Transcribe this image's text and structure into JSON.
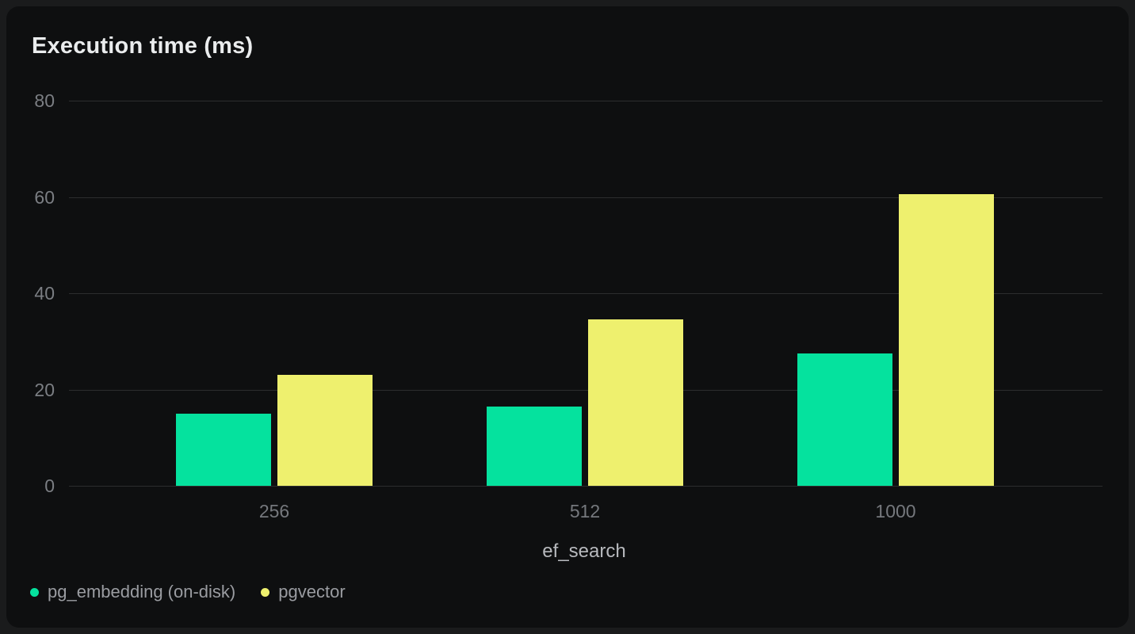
{
  "chart_data": {
    "type": "bar",
    "title": "Execution time (ms)",
    "xlabel": "ef_search",
    "ylabel": "Execution time (ms)",
    "categories": [
      "256",
      "512",
      "1000"
    ],
    "series": [
      {
        "name": "pg_embedding (on-disk)",
        "color": "#05e29e",
        "values": [
          15,
          16.5,
          27.5
        ]
      },
      {
        "name": "pgvector",
        "color": "#eef06e",
        "values": [
          23,
          34.5,
          60.5
        ]
      }
    ],
    "ylim": [
      0,
      80
    ],
    "yticks": [
      0,
      20,
      40,
      60,
      80
    ],
    "grid": true,
    "legend_position": "bottom-left"
  },
  "colors": {
    "page_background": "#1a1b1c",
    "card_background": "#0e0f10",
    "gridline": "#2c2d2e",
    "title_text": "#eaeced",
    "tick_text": "#7b7e83",
    "axis_title_text": "#b7b9bd",
    "legend_text": "#9a9ca1"
  }
}
